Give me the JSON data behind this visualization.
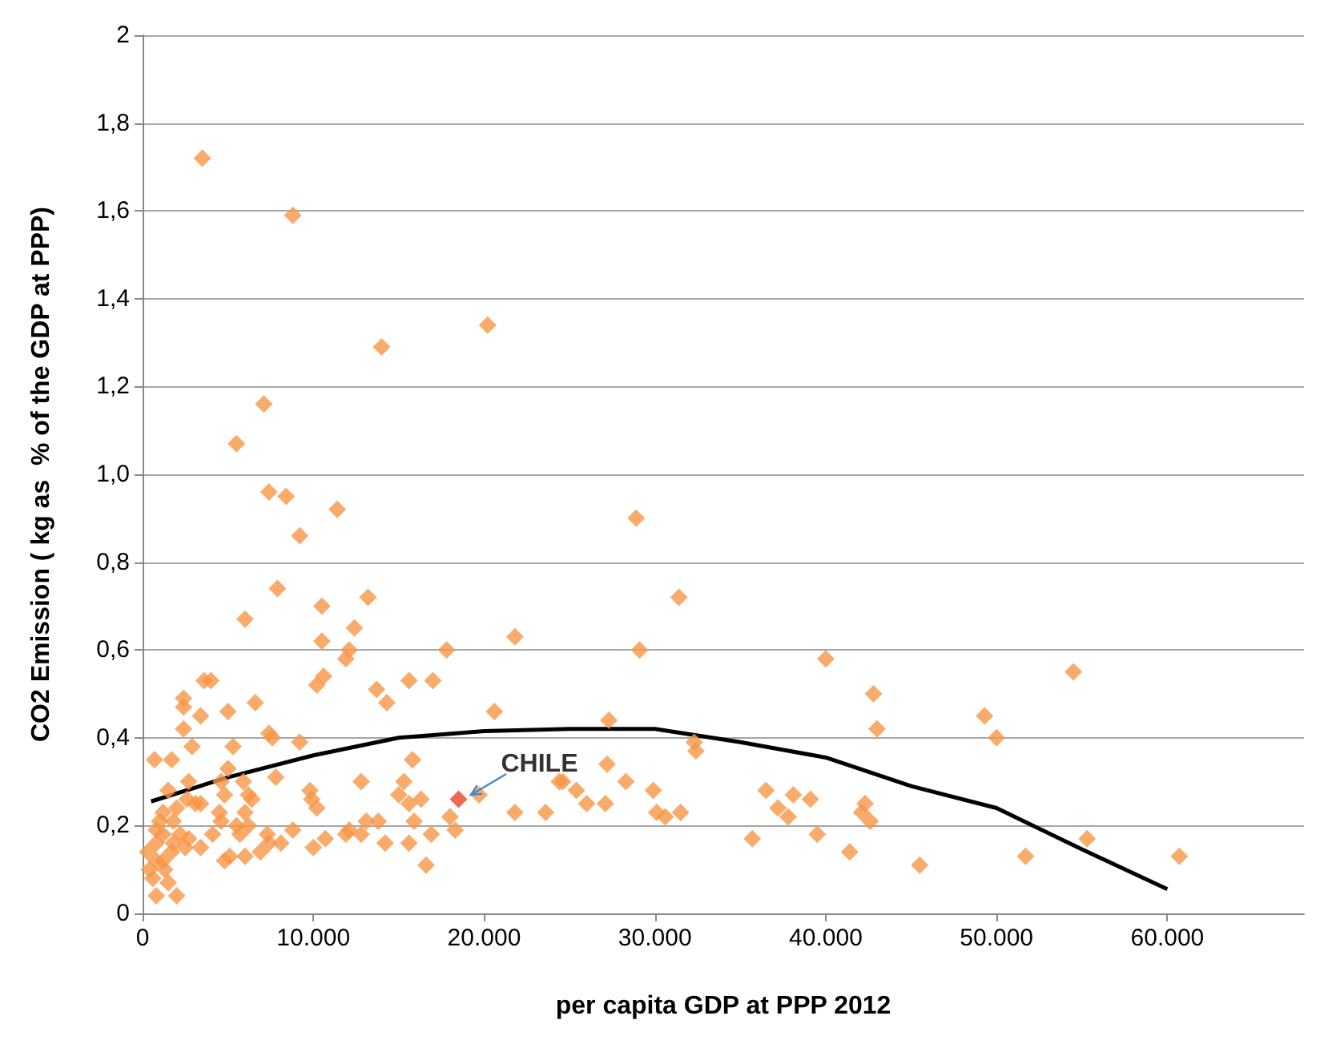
{
  "chart_data": {
    "type": "scatter",
    "xlabel": "per capita GDP at PPP 2012",
    "ylabel": "CO2 Emission ( kg as  % of the GDP at PPP)",
    "xlim": [
      0,
      68000
    ],
    "xticks": [
      {
        "value": 0,
        "label": "0"
      },
      {
        "value": 10000,
        "label": "10.000"
      },
      {
        "value": 20000,
        "label": "20.000"
      },
      {
        "value": 30000,
        "label": "30.000"
      },
      {
        "value": 40000,
        "label": "40.000"
      },
      {
        "value": 50000,
        "label": "50.000"
      },
      {
        "value": 60000,
        "label": "60.000"
      }
    ],
    "ylim": [
      0,
      2
    ],
    "yticks": [
      {
        "value": 0,
        "label": "0"
      },
      {
        "value": 0.2,
        "label": "0,2"
      },
      {
        "value": 0.4,
        "label": "0,4"
      },
      {
        "value": 0.6,
        "label": "0,6"
      },
      {
        "value": 0.8,
        "label": "0,8"
      },
      {
        "value": 1,
        "label": "1,0"
      },
      {
        "value": 1.2,
        "label": "1,2"
      },
      {
        "value": 1.4,
        "label": "1,4"
      },
      {
        "value": 1.6,
        "label": "1,6"
      },
      {
        "value": 1.8,
        "label": "1,8"
      },
      {
        "value": 2,
        "label": "2"
      }
    ],
    "grid": "y",
    "marker": "diamond",
    "series": [
      {
        "color": "#f79646",
        "x": [
          3500,
          8800,
          14000,
          20200,
          7100,
          5500,
          7400,
          8400,
          11400,
          9200,
          28900,
          31400,
          13200,
          7900,
          10500,
          6000,
          12400,
          10500,
          12100,
          11900,
          17800,
          21800,
          29100,
          40000,
          54500,
          3600,
          4000,
          10600,
          10200,
          13700,
          14300,
          15600,
          17000,
          2400,
          2400,
          6600,
          3400,
          5000,
          20600,
          42800,
          43000,
          49300,
          50000,
          27300,
          32300,
          32400,
          2400,
          7400,
          7600,
          2900,
          5300,
          9200,
          700,
          1700,
          15800,
          27200,
          5000,
          2700,
          7800,
          12800,
          15300,
          4600,
          5900,
          24400,
          24600,
          28300,
          6200,
          4800,
          9800,
          9900,
          10200,
          15000,
          15600,
          16300,
          19700,
          25400,
          29900,
          36500,
          38100,
          39100,
          26000,
          27100,
          37200,
          42300,
          21800,
          23600,
          30100,
          30600,
          31500,
          37800,
          42100,
          42600,
          1500,
          2600,
          3100,
          1200,
          2000,
          3400,
          1000,
          1800,
          6400,
          4500,
          4600,
          6000,
          5500,
          6200,
          4100,
          5700,
          7300,
          7400,
          8100,
          8800,
          10000,
          10700,
          11900,
          12100,
          12800,
          13100,
          13800,
          14200,
          15600,
          15900,
          16900,
          18000,
          18300,
          16600,
          4800,
          5100,
          6000,
          6900,
          300,
          800,
          800,
          600,
          800,
          2000,
          1500,
          1300,
          1700,
          2500,
          3400,
          2700,
          2200,
          1200,
          800,
          1800,
          400,
          1200,
          35700,
          39500,
          41400,
          45500,
          51700,
          55300,
          60700
        ],
        "values": [
          1.72,
          1.59,
          1.29,
          1.34,
          1.16,
          1.07,
          0.96,
          0.95,
          0.92,
          0.86,
          0.9,
          0.72,
          0.72,
          0.74,
          0.7,
          0.67,
          0.65,
          0.62,
          0.6,
          0.58,
          0.6,
          0.63,
          0.6,
          0.58,
          0.55,
          0.53,
          0.53,
          0.54,
          0.52,
          0.51,
          0.48,
          0.53,
          0.53,
          0.49,
          0.47,
          0.48,
          0.45,
          0.46,
          0.46,
          0.5,
          0.42,
          0.45,
          0.4,
          0.44,
          0.39,
          0.37,
          0.42,
          0.41,
          0.4,
          0.38,
          0.38,
          0.39,
          0.35,
          0.35,
          0.35,
          0.34,
          0.33,
          0.3,
          0.31,
          0.3,
          0.3,
          0.3,
          0.3,
          0.3,
          0.3,
          0.3,
          0.27,
          0.27,
          0.28,
          0.26,
          0.24,
          0.27,
          0.25,
          0.26,
          0.27,
          0.28,
          0.28,
          0.28,
          0.27,
          0.26,
          0.25,
          0.25,
          0.24,
          0.25,
          0.23,
          0.23,
          0.23,
          0.22,
          0.23,
          0.22,
          0.23,
          0.21,
          0.28,
          0.26,
          0.25,
          0.23,
          0.24,
          0.25,
          0.21,
          0.21,
          0.26,
          0.23,
          0.21,
          0.23,
          0.2,
          0.2,
          0.18,
          0.18,
          0.18,
          0.16,
          0.16,
          0.19,
          0.15,
          0.17,
          0.18,
          0.19,
          0.18,
          0.21,
          0.21,
          0.16,
          0.16,
          0.21,
          0.18,
          0.22,
          0.19,
          0.11,
          0.12,
          0.13,
          0.13,
          0.14,
          0.14,
          0.16,
          0.12,
          0.08,
          0.04,
          0.04,
          0.07,
          0.1,
          0.14,
          0.15,
          0.15,
          0.17,
          0.18,
          0.18,
          0.19,
          0.16,
          0.1,
          0.12,
          0.17,
          0.18,
          0.14,
          0.11,
          0.13,
          0.17,
          0.13
        ]
      },
      {
        "name": "CHILE",
        "color": "#e8412b",
        "x": [
          18500
        ],
        "values": [
          0.26
        ]
      },
      {
        "type": "line",
        "color": "#000000",
        "marker": "none",
        "x": [
          500,
          5000,
          10000,
          15000,
          20000,
          25000,
          30000,
          35000,
          40000,
          45000,
          50000,
          55000,
          60000
        ],
        "values": [
          0.255,
          0.31,
          0.36,
          0.4,
          0.415,
          0.42,
          0.42,
          0.39,
          0.355,
          0.29,
          0.24,
          0.146,
          0.055
        ]
      }
    ]
  }
}
